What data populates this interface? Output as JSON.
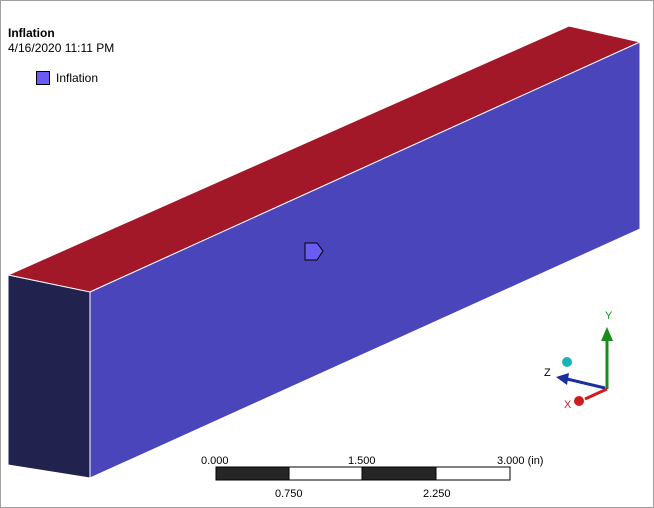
{
  "header": {
    "title": "Inflation",
    "timestamp": "4/16/2020 11:11 PM"
  },
  "legend": {
    "label": "Inflation",
    "color": "#6a5cf2"
  },
  "model": {
    "top_face_color": "#a31828",
    "front_face_color": "#4a45bb",
    "end_face_color": "#22224f",
    "marker_color": "#6a5cf2"
  },
  "scale_bar": {
    "top_labels": [
      "0.000",
      "1.500",
      "3.000 (in)"
    ],
    "bottom_labels": [
      "0.750",
      "2.250"
    ]
  },
  "triad": {
    "x_label": "X",
    "y_label": "Y",
    "z_label": "Z",
    "x_color": "#cc1e1e",
    "y_color": "#1a8c1a",
    "z_color": "#1a2fa0",
    "iso_color": "#19b5b5"
  }
}
